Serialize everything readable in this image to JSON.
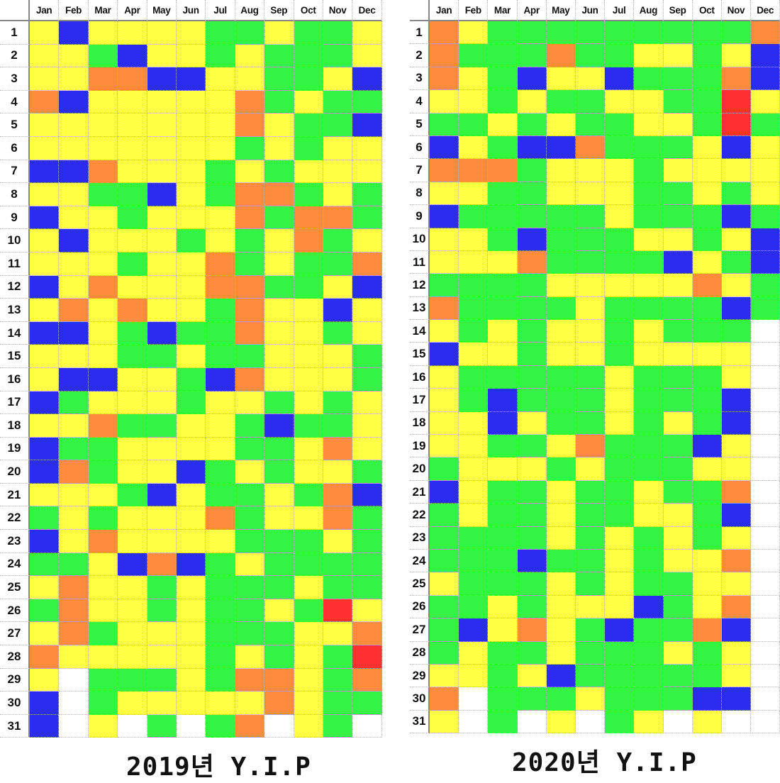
{
  "chart_data": [
    {
      "type": "heatmap",
      "title": "2019년 Y.I.P",
      "columns": [
        "Jan",
        "Feb",
        "Mar",
        "Apr",
        "May",
        "Jun",
        "Jul",
        "Aug",
        "Sep",
        "Oct",
        "Nov",
        "Dec"
      ],
      "rows": [
        "1",
        "2",
        "3",
        "4",
        "5",
        "6",
        "7",
        "8",
        "9",
        "10",
        "11",
        "12",
        "13",
        "14",
        "15",
        "16",
        "17",
        "18",
        "19",
        "20",
        "21",
        "22",
        "23",
        "24",
        "25",
        "26",
        "27",
        "28",
        "29",
        "30",
        "31"
      ],
      "values": [
        "YBYYYYGGYGGY",
        "YYGBYYGYGGGY",
        "YYOOBBYYGGYB",
        "OBYYYYYOGYGG",
        "YYYYYYYOYGGB",
        "YYYYYYYGYGYY",
        "BBOYYYGYGYYY",
        "YYGGBYGOOGYG",
        "BYYGYYYOGOOG",
        "YBYYYGYGYOGY",
        "YYYGYYOGYGGO",
        "BYOYYYOOGGYB",
        "YOYOYYGOYYBY",
        "BBYGBGGOYYGY",
        "YYYGGYGGYYYG",
        "YBBYYGBOYYYG",
        "BGYYYGYYGYGY",
        "YYOGGYYGBGGY",
        "BGGYYYYGGYOY",
        "BOGYYBGYGYYG",
        "YYYGBYGGYGOB",
        "GYGYYYOGYYOG",
        "BYOYYYYGGGYG",
        "GGYBOBGYGGGG",
        "YOYYGYGGGYGG",
        "GOYYGYGGYGRY",
        "YOGYYYGGGYYO",
        "OYYYYYGYGYGR",
        "YWGGGYGOOYGO",
        "BWGYYYYYOYGG",
        "BWYWGWGOWYGW"
      ],
      "legend": {
        "G": "#33f442",
        "Y": "#ffff44",
        "O": "#ff8c3c",
        "B": "#2a2cee",
        "R": "#ff3030",
        "W": "#ffffff"
      }
    },
    {
      "type": "heatmap",
      "title": "2020년 Y.I.P",
      "columns": [
        "Jan",
        "Feb",
        "Mar",
        "Apr",
        "May",
        "Jun",
        "Jul",
        "Aug",
        "Sep",
        "Oct",
        "Nov",
        "Dec"
      ],
      "rows": [
        "1",
        "2",
        "3",
        "4",
        "5",
        "6",
        "7",
        "8",
        "9",
        "10",
        "11",
        "12",
        "13",
        "14",
        "15",
        "16",
        "17",
        "18",
        "19",
        "20",
        "21",
        "22",
        "23",
        "24",
        "25",
        "26",
        "27",
        "28",
        "29",
        "30",
        "31"
      ],
      "values": [
        "OYGGGGGGGGGO",
        "OGGGOGGYYGYB",
        "OYGBYYBGGGOB",
        "YYGYGGYYGGRY",
        "GGYGYGGYYGRG",
        "BYGBBOGGGYBY",
        "OOOGYYYGYYYY",
        "YYGGYYYGGYGY",
        "BGGGGGYGGGBG",
        "YYGBGGGYYGYB",
        "YYYOGGGGBYGB",
        "GGGGYYYYYOYG",
        "OGGGGYGGGGBG",
        "YGYGYYGYGGGW",
        "BYYGYYGYYYYW",
        "YGGGGGYGGGYW",
        "YGBGGGYGGGBW",
        "YYBYGGYGYGBW",
        "YYGGYOGGGBYW",
        "GYYYGYGGGYYW",
        "BYGGYGGYGGOW",
        "GYGGYGGYYGBW",
        "GGGGYGYGYGYW",
        "GGGBGGYGYYOW",
        "YGGGYGYGGYYW",
        "GGYGYYYBGYOW",
        "GBYOYGBGGOBW",
        "GYGGYGGGYGYW",
        "YYGYBGGGGGYW",
        "OWGGGYGGGBBW",
        "YWGWYWGYWYWW"
      ],
      "legend": {
        "G": "#33f442",
        "Y": "#ffff44",
        "O": "#ff8c3c",
        "B": "#2a2cee",
        "R": "#ff3030",
        "W": "#ffffff"
      }
    }
  ],
  "captions": [
    "2019년 Y.I.P",
    "2020년 Y.I.P"
  ]
}
